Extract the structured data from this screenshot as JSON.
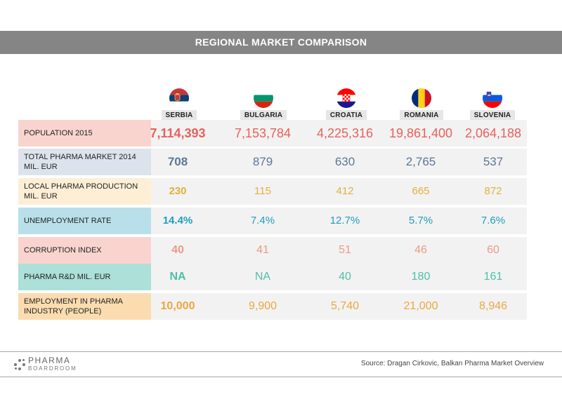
{
  "title": "REGIONAL MARKET COMPARISON",
  "countries": [
    {
      "name": "SERBIA",
      "flag": "serbia-flag-icon"
    },
    {
      "name": "BULGARIA",
      "flag": "bulgaria-flag-icon"
    },
    {
      "name": "CROATIA",
      "flag": "croatia-flag-icon"
    },
    {
      "name": "ROMANIA",
      "flag": "romania-flag-icon"
    },
    {
      "name": "SLOVENIA",
      "flag": "slovenia-flag-icon"
    }
  ],
  "rows": [
    {
      "label": "POPULATION 2015",
      "label_bg": "#f9d4cf",
      "value_color": "#e9605a",
      "values": [
        "7,114,393",
        "7,153,784",
        "4,225,316",
        "19,861,400",
        "2,064,188"
      ]
    },
    {
      "label": "TOTAL PHARMA MARKET 2014 MIL. EUR",
      "label_bg": "#dde3ec",
      "value_color": "#5b7896",
      "values": [
        "708",
        "879",
        "630",
        "2,765",
        "537"
      ]
    },
    {
      "label": "LOCAL PHARMA PRODUCTION MIL. EUR",
      "label_bg": "#fcefd6",
      "value_color": "#e0b23c",
      "values": [
        "230",
        "115",
        "412",
        "665",
        "872"
      ]
    },
    {
      "label": "UNEMPLOYMENT RATE",
      "label_bg": "#b9e0ea",
      "value_color": "#1f9ec0",
      "values": [
        "14.4%",
        "7.4%",
        "12.7%",
        "5.7%",
        "7.6%"
      ]
    },
    {
      "label": "CORRUPTION INDEX",
      "label_bg": "#f9d4cf",
      "value_color": "#eb9a84",
      "values": [
        "40",
        "41",
        "51",
        "46",
        "60"
      ]
    },
    {
      "label": "PHARMA R&D MIL. EUR",
      "label_bg": "#ace0d8",
      "value_color": "#4fbfa9",
      "values": [
        "NA",
        "NA",
        "40",
        "180",
        "161"
      ]
    },
    {
      "label": "EMPLOYMENT IN PHARMA INDUSTRY (PEOPLE)",
      "label_bg": "#fbdcb0",
      "value_color": "#eba73f",
      "values": [
        "10,000",
        "9,900",
        "5,740",
        "21,000",
        "8,946"
      ]
    }
  ],
  "logo": {
    "line1": "PHARMA",
    "line2": "BOARDROOM"
  },
  "source": "Source: Dragan Cirkovic, Balkan Pharma Market Overview"
}
